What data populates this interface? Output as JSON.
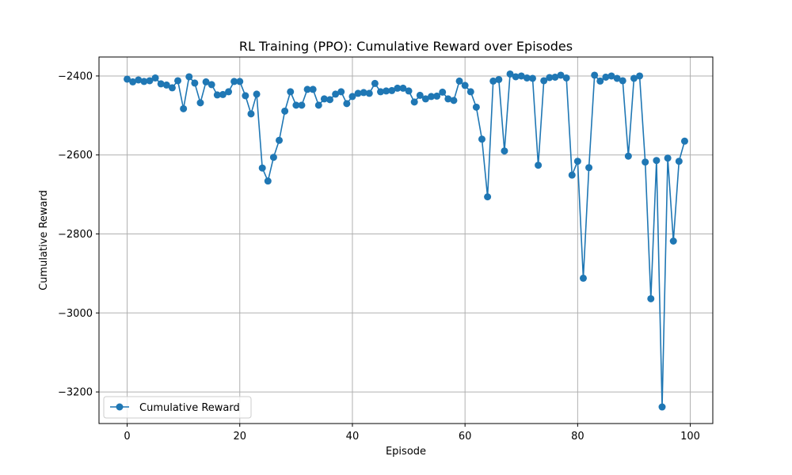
{
  "chart_data": {
    "type": "line",
    "title": "RL Training (PPO): Cumulative Reward over Episodes",
    "xlabel": "Episode",
    "ylabel": "Cumulative Reward",
    "xlim": [
      -5,
      104
    ],
    "ylim": [
      -3280,
      -2352
    ],
    "grid": true,
    "legend_position": "lower-left",
    "x_ticks": [
      0,
      20,
      40,
      60,
      80,
      100
    ],
    "x_tick_labels": [
      "0",
      "20",
      "40",
      "60",
      "80",
      "100"
    ],
    "y_ticks": [
      -3200,
      -3000,
      -2800,
      -2600,
      -2400
    ],
    "y_tick_labels": [
      "−3200",
      "−3000",
      "−2800",
      "−2600",
      "−2400"
    ],
    "series": [
      {
        "name": "Cumulative Reward",
        "color": "#1f77b4",
        "marker": "circle",
        "x": [
          0,
          1,
          2,
          3,
          4,
          5,
          6,
          7,
          8,
          9,
          10,
          11,
          12,
          13,
          14,
          15,
          16,
          17,
          18,
          19,
          20,
          21,
          22,
          23,
          24,
          25,
          26,
          27,
          28,
          29,
          30,
          31,
          32,
          33,
          34,
          35,
          36,
          37,
          38,
          39,
          40,
          41,
          42,
          43,
          44,
          45,
          46,
          47,
          48,
          49,
          50,
          51,
          52,
          53,
          54,
          55,
          56,
          57,
          58,
          59,
          60,
          61,
          62,
          63,
          64,
          65,
          66,
          67,
          68,
          69,
          70,
          71,
          72,
          73,
          74,
          75,
          76,
          77,
          78,
          79,
          80,
          81,
          82,
          83,
          84,
          85,
          86,
          87,
          88,
          89,
          90,
          91,
          92,
          93,
          94,
          95,
          96,
          97,
          98,
          99
        ],
        "values": [
          -2408,
          -2415,
          -2410,
          -2414,
          -2412,
          -2405,
          -2420,
          -2423,
          -2430,
          -2412,
          -2483,
          -2402,
          -2418,
          -2468,
          -2415,
          -2422,
          -2448,
          -2447,
          -2440,
          -2414,
          -2414,
          -2450,
          -2496,
          -2446,
          -2633,
          -2666,
          -2606,
          -2563,
          -2489,
          -2440,
          -2474,
          -2474,
          -2434,
          -2434,
          -2474,
          -2458,
          -2460,
          -2446,
          -2440,
          -2470,
          -2452,
          -2444,
          -2442,
          -2444,
          -2419,
          -2440,
          -2438,
          -2437,
          -2431,
          -2431,
          -2438,
          -2466,
          -2449,
          -2458,
          -2452,
          -2451,
          -2441,
          -2458,
          -2462,
          -2413,
          -2424,
          -2440,
          -2479,
          -2560,
          -2706,
          -2413,
          -2409,
          -2590,
          -2395,
          -2402,
          -2400,
          -2405,
          -2406,
          -2626,
          -2412,
          -2404,
          -2403,
          -2398,
          -2405,
          -2651,
          -2616,
          -2912,
          -2632,
          -2398,
          -2413,
          -2403,
          -2400,
          -2406,
          -2412,
          -2603,
          -2406,
          -2400,
          -2618,
          -2964,
          -2614,
          -3238,
          -2608,
          -2818,
          -2616,
          -2565
        ]
      }
    ]
  }
}
